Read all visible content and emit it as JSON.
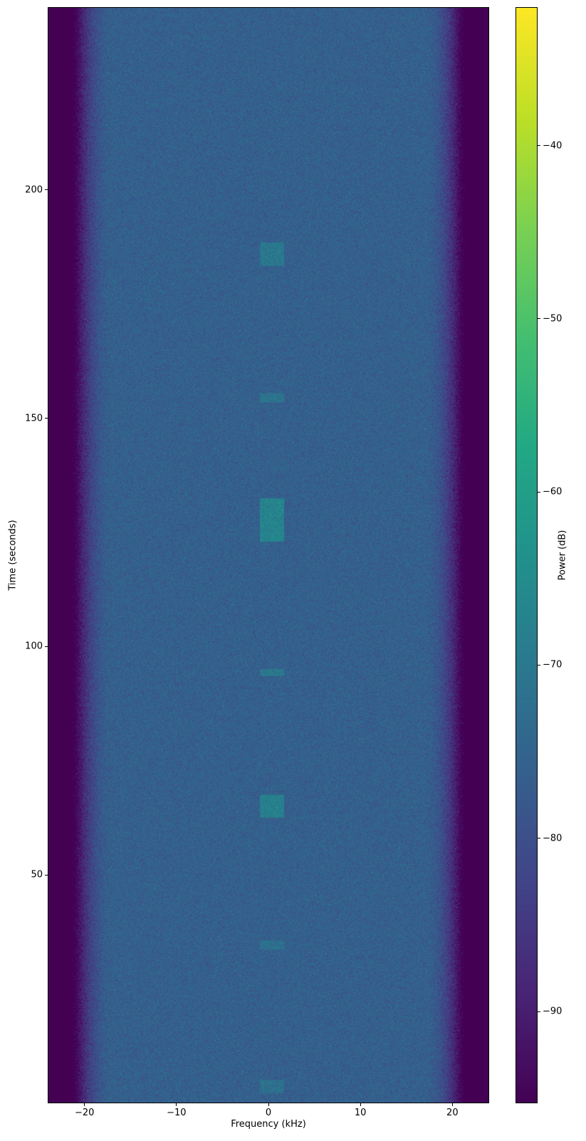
{
  "chart_data": {
    "type": "heatmap",
    "title": "",
    "xlabel": "Frequency (kHz)",
    "ylabel": "Time (seconds)",
    "xlim": [
      -24,
      24
    ],
    "ylim": [
      0,
      240
    ],
    "xticks": [
      -20,
      -10,
      0,
      10,
      20
    ],
    "xtick_labels": [
      "−20",
      "−10",
      "0",
      "10",
      "20"
    ],
    "yticks": [
      50,
      100,
      150,
      200
    ],
    "ytick_labels": [
      "50",
      "100",
      "150",
      "200"
    ],
    "colorbar": {
      "label": "Power (dB)",
      "colormap": "viridis",
      "clim": [
        -95.3,
        -32
      ],
      "ticks": [
        -90,
        -80,
        -70,
        -60,
        -50,
        -40
      ],
      "tick_labels": [
        "−90",
        "−80",
        "−70",
        "−60",
        "−50",
        "−40"
      ]
    },
    "background_power_db": -76,
    "passband_edge_khz": 21,
    "bursts": [
      {
        "t_start": 183.5,
        "t_end": 188.5,
        "f_start": -0.9,
        "f_end": 1.7,
        "power_db": -70
      },
      {
        "t_start": 153.5,
        "t_end": 155.5,
        "f_start": -0.9,
        "f_end": 1.7,
        "power_db": -71
      },
      {
        "t_start": 123,
        "t_end": 132.5,
        "f_start": -0.9,
        "f_end": 1.7,
        "power_db": -67
      },
      {
        "t_start": 93.5,
        "t_end": 95,
        "f_start": -0.9,
        "f_end": 1.7,
        "power_db": -70
      },
      {
        "t_start": 62.5,
        "t_end": 67.5,
        "f_start": -0.9,
        "f_end": 1.7,
        "power_db": -68
      },
      {
        "t_start": 33.5,
        "t_end": 35.5,
        "f_start": -0.9,
        "f_end": 1.7,
        "power_db": -72
      },
      {
        "t_start": 2,
        "t_end": 5,
        "f_start": -0.9,
        "f_end": 1.7,
        "power_db": -72
      }
    ],
    "grid": false
  }
}
